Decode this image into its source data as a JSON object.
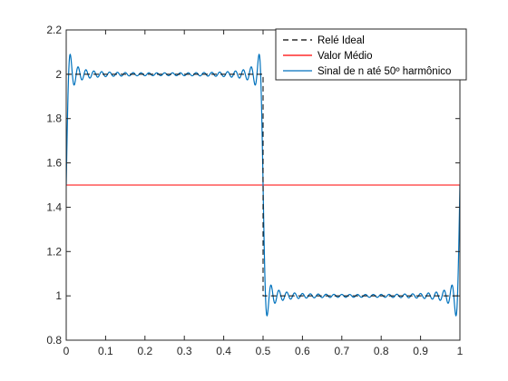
{
  "chart_data": {
    "type": "line",
    "xlim": [
      0,
      1
    ],
    "ylim": [
      0.8,
      2.2
    ],
    "xticks": [
      0,
      0.1,
      0.2,
      0.3,
      0.4,
      0.5,
      0.6,
      0.7,
      0.8,
      0.9,
      1
    ],
    "xtick_labels": [
      "0",
      "0.1",
      "0.2",
      "0.3",
      "0.4",
      "0.5",
      "0.6",
      "0.7",
      "0.8",
      "0.9",
      "1"
    ],
    "yticks": [
      0.8,
      1,
      1.2,
      1.4,
      1.6,
      1.8,
      2,
      2.2
    ],
    "ytick_labels": [
      "0.8",
      "1",
      "1.2",
      "1.4",
      "1.6",
      "1.8",
      "2",
      "2.2"
    ],
    "grid": false,
    "legend_position": "top-right",
    "series": [
      {
        "name": "Relé Ideal",
        "style": "dashed",
        "color": "#000000",
        "x": [
          0,
          0.5,
          0.5,
          1
        ],
        "y": [
          2,
          2,
          1,
          1
        ]
      },
      {
        "name": "Valor Médio",
        "style": "solid",
        "color": "#ff0000",
        "x": [
          0,
          1
        ],
        "y": [
          1.5,
          1.5
        ]
      },
      {
        "name": "Sinal de n até 50º harmônico",
        "style": "solid",
        "color": "#0072bd",
        "x": [
          0,
          0.005,
          0.01,
          0.5,
          0.505,
          0.99,
          0.995,
          1
        ],
        "y": [
          1.45,
          2.09,
          2.0,
          1.5,
          0.93,
          1.0,
          0.91,
          1.45
        ]
      }
    ]
  }
}
